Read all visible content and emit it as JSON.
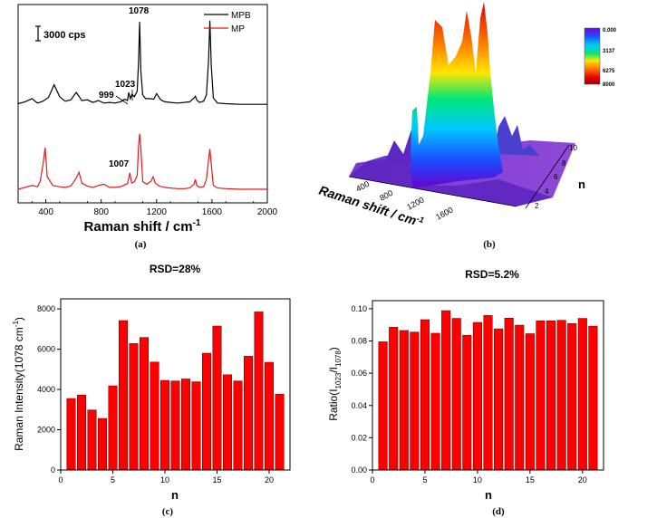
{
  "panels": {
    "a": "(a)",
    "b": "(b)",
    "c": "(c)",
    "d": "(d)"
  },
  "chart_data": [
    {
      "id": "a",
      "type": "line",
      "xlabel": "Raman shift / cm",
      "xlabel_sup": "-1",
      "xlim": [
        200,
        2000
      ],
      "xticks": [
        400,
        800,
        1200,
        1600,
        2000
      ],
      "scale_bar_label": "3000 cps",
      "legend": {
        "placement": "top-right"
      },
      "series": [
        {
          "name": "MPB",
          "color": "#000000",
          "x": [
            200,
            250,
            300,
            340,
            380,
            420,
            460,
            500,
            540,
            580,
            620,
            660,
            700,
            740,
            780,
            820,
            860,
            900,
            940,
            970,
            990,
            999,
            1010,
            1023,
            1040,
            1060,
            1070,
            1078,
            1086,
            1100,
            1120,
            1150,
            1180,
            1200,
            1230,
            1260,
            1300,
            1350,
            1400,
            1440,
            1470,
            1480,
            1490,
            1510,
            1540,
            1560,
            1575,
            1585,
            1595,
            1610,
            1640,
            1700,
            1800,
            1900,
            2000
          ],
          "y": [
            1.8,
            2.1,
            2.6,
            1.9,
            2.2,
            2.8,
            4.8,
            2.9,
            2.2,
            2.4,
            3.6,
            2.3,
            2.4,
            2.0,
            2.3,
            1.9,
            2.0,
            1.9,
            2.1,
            2.5,
            2.3,
            3.6,
            2.6,
            3.3,
            2.9,
            3.8,
            8.5,
            14.8,
            7.0,
            3.2,
            2.6,
            2.6,
            2.5,
            3.4,
            2.4,
            2.1,
            2.0,
            1.9,
            2.0,
            2.1,
            2.7,
            3.0,
            2.4,
            2.0,
            2.2,
            3.2,
            8.6,
            15.0,
            8.0,
            2.7,
            1.9,
            1.8,
            1.7,
            1.7,
            1.7
          ]
        },
        {
          "name": "MP",
          "color": "#e31a1c",
          "x": [
            200,
            250,
            300,
            340,
            360,
            380,
            395,
            410,
            450,
            500,
            540,
            580,
            620,
            640,
            660,
            700,
            740,
            780,
            820,
            860,
            900,
            940,
            970,
            990,
            1007,
            1020,
            1040,
            1060,
            1070,
            1078,
            1086,
            1100,
            1130,
            1160,
            1175,
            1190,
            1220,
            1260,
            1300,
            1350,
            1400,
            1440,
            1470,
            1480,
            1490,
            1510,
            1540,
            1560,
            1575,
            1585,
            1595,
            1610,
            1640,
            1700,
            1800,
            1900,
            2000
          ],
          "y": [
            -11.8,
            -11.5,
            -11.2,
            -11.4,
            -10.5,
            -7.8,
            -5.2,
            -9.8,
            -11.2,
            -11.4,
            -11.5,
            -11.3,
            -10.0,
            -9.1,
            -10.8,
            -11.3,
            -11.5,
            -11.2,
            -11.0,
            -11.5,
            -11.5,
            -11.4,
            -11.1,
            -10.9,
            -9.2,
            -10.8,
            -10.6,
            -9.6,
            -5.0,
            -3.0,
            -5.2,
            -10.6,
            -11.0,
            -10.5,
            -9.8,
            -10.8,
            -11.3,
            -11.5,
            -11.6,
            -11.7,
            -11.7,
            -11.6,
            -11.0,
            -10.2,
            -11.2,
            -11.5,
            -11.4,
            -10.2,
            -7.2,
            -5.4,
            -7.8,
            -11.2,
            -11.6,
            -11.7,
            -11.8,
            -11.8,
            -11.8
          ]
        }
      ],
      "peak_labels": [
        {
          "text": "1078",
          "x": 1078
        },
        {
          "text": "999",
          "x": 999
        },
        {
          "text": "1023",
          "x": 1023
        },
        {
          "text": "1007",
          "x": 1007
        }
      ]
    },
    {
      "id": "b",
      "type": "area",
      "title": "",
      "xlabel": "Raman shift / cm",
      "xlabel_sup": "-1",
      "ylabel": "n",
      "x_ticks": [
        "400",
        "800",
        "1200",
        "1600"
      ],
      "n_ticks": [
        "2",
        "4",
        "6",
        "8",
        "10"
      ],
      "colorbar_ticks": [
        "0.000",
        "3137",
        "6275",
        "8000"
      ],
      "colorbar_colors": [
        "#7b00d9",
        "#1a4cff",
        "#00c8ff",
        "#00e676",
        "#ffe600",
        "#ff7a00",
        "#e00000",
        "#9a0000"
      ]
    },
    {
      "id": "c",
      "type": "bar",
      "title": "RSD=28%",
      "xlabel": "n",
      "ylabel": "Raman Intensity(1078 cm",
      "ylabel_sup": "-1",
      "ylabel_end": ")",
      "xlim": [
        0,
        22
      ],
      "ylim": [
        0,
        8500
      ],
      "xticks": [
        0,
        5,
        10,
        15,
        20
      ],
      "yticks": [
        0,
        2000,
        4000,
        6000,
        8000
      ],
      "bar_color": "#ff0000",
      "x": [
        1,
        2,
        3,
        4,
        5,
        6,
        7,
        8,
        9,
        10,
        11,
        12,
        13,
        14,
        15,
        16,
        17,
        18,
        19,
        20,
        21
      ],
      "values": [
        3550,
        3720,
        2980,
        2560,
        4180,
        7420,
        6280,
        6580,
        5360,
        4450,
        4420,
        4520,
        4380,
        5800,
        7150,
        4730,
        4420,
        5650,
        7850,
        5350,
        3770
      ]
    },
    {
      "id": "d",
      "type": "bar",
      "title": "RSD=5.2%",
      "xlabel": "n",
      "ylabel": "Ratio(I",
      "ylabel_sub1": "1023",
      "ylabel_mid": "/I",
      "ylabel_sub2": "1078",
      "ylabel_end": ")",
      "xlim": [
        0,
        22
      ],
      "ylim": [
        0,
        0.105
      ],
      "xticks": [
        0,
        5,
        10,
        15,
        20
      ],
      "yticks": [
        "0.00",
        "0.02",
        "0.04",
        "0.06",
        "0.08",
        "0.10"
      ],
      "bar_color": "#ff0000",
      "x": [
        1,
        2,
        3,
        4,
        5,
        6,
        7,
        8,
        9,
        10,
        11,
        12,
        13,
        14,
        15,
        16,
        17,
        18,
        19,
        20,
        21
      ],
      "values": [
        0.0795,
        0.0885,
        0.0865,
        0.0855,
        0.0932,
        0.0848,
        0.0988,
        0.094,
        0.0835,
        0.0915,
        0.0958,
        0.0875,
        0.0942,
        0.0898,
        0.0845,
        0.0925,
        0.0925,
        0.0928,
        0.0908,
        0.094,
        0.0892
      ]
    }
  ]
}
